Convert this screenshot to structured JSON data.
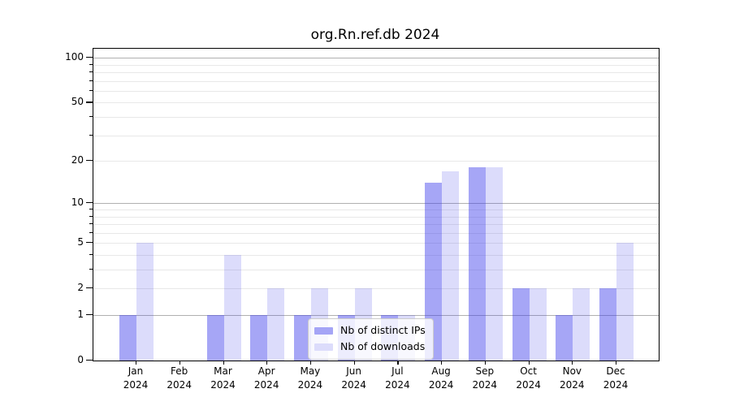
{
  "title": "org.Rn.ref.db 2024",
  "chart_data": {
    "type": "bar",
    "title": "org.Rn.ref.db 2024",
    "categories": [
      "Jan 2024",
      "Feb 2024",
      "Mar 2024",
      "Apr 2024",
      "May 2024",
      "Jun 2024",
      "Jul 2024",
      "Aug 2024",
      "Sep 2024",
      "Oct 2024",
      "Nov 2024",
      "Dec 2024"
    ],
    "series": [
      {
        "name": "Nb of distinct IPs",
        "values": [
          1,
          0,
          1,
          1,
          1,
          1,
          1,
          14,
          18,
          2,
          1,
          2
        ],
        "base_color": "#3c3ceb",
        "alpha": 0.46,
        "swatch_color": "#a5a5f6"
      },
      {
        "name": "Nb of downloads",
        "values": [
          5,
          0,
          4,
          2,
          2,
          2,
          1,
          17,
          18,
          2,
          2,
          5
        ],
        "base_color": "#3c3ceb",
        "alpha": 0.18,
        "swatch_color": "#dcdcfb"
      }
    ],
    "xlabel": "",
    "ylabel": "",
    "yscale": "log1p",
    "ylim": [
      0,
      115
    ],
    "ytick_values": [
      0,
      1,
      2,
      5,
      10,
      20,
      50,
      100
    ],
    "ytick_labels": [
      "0",
      "1",
      "2",
      "5",
      "10",
      "20",
      "50",
      "100"
    ],
    "major_grid_values": [
      1,
      10,
      100
    ],
    "minor_grid_values": [
      2,
      3,
      4,
      5,
      6,
      7,
      8,
      9,
      20,
      30,
      40,
      50,
      60,
      70,
      80,
      90
    ],
    "grid": true,
    "legend_position": "lower center",
    "colors": {
      "grid_major": "#b0b0b0",
      "grid_minor": "#e8e8e8",
      "spine": "#000000",
      "text": "#000000",
      "legend_border": "#cccccc",
      "legend_bg": "rgba(255,255,255,0.8)"
    }
  }
}
